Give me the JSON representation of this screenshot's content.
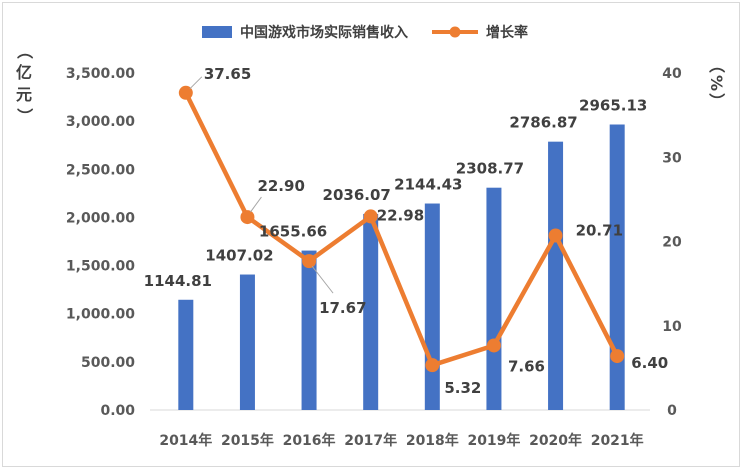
{
  "chart_data": {
    "type": "bar",
    "categories": [
      "2014年",
      "2015年",
      "2016年",
      "2017年",
      "2018年",
      "2019年",
      "2020年",
      "2021年"
    ],
    "series": [
      {
        "name": "中国游戏市场实际销售收入",
        "type": "bar",
        "axis": "left",
        "values": [
          1144.81,
          1407.02,
          1655.66,
          2036.07,
          2144.43,
          2308.77,
          2786.87,
          2965.13
        ],
        "labels": [
          "1144.81",
          "1407.02",
          "1655.66",
          "2036.07",
          "2144.43",
          "2308.77",
          "2786.87",
          "2965.13"
        ]
      },
      {
        "name": "增长率",
        "type": "line",
        "axis": "right",
        "values": [
          37.65,
          22.9,
          17.67,
          22.98,
          5.32,
          7.66,
          20.71,
          6.4
        ],
        "labels": [
          "37.65",
          "22.90",
          "17.67",
          "22.98",
          "5.32",
          "7.66",
          "20.71",
          "6.40"
        ]
      }
    ],
    "y_left": {
      "label_chars": [
        "（",
        "亿",
        "元",
        "）"
      ],
      "range": [
        0,
        3500
      ],
      "ticks": [
        0,
        500,
        1000,
        1500,
        2000,
        2500,
        3000,
        3500
      ],
      "tick_labels": [
        "0.00",
        "500.00",
        "1,000.00",
        "1,500.00",
        "2,000.00",
        "2,500.00",
        "3,000.00",
        "3,500.00"
      ]
    },
    "y_right": {
      "label_chars": [
        "（",
        "%",
        "）"
      ],
      "range": [
        0,
        40
      ],
      "ticks": [
        0,
        10,
        20,
        30,
        40
      ],
      "tick_labels": [
        "0",
        "10",
        "20",
        "30",
        "40"
      ]
    },
    "legend_position": "top",
    "grid": false,
    "colors": {
      "bar": "#4472C4",
      "line": "#ED7D31"
    }
  }
}
